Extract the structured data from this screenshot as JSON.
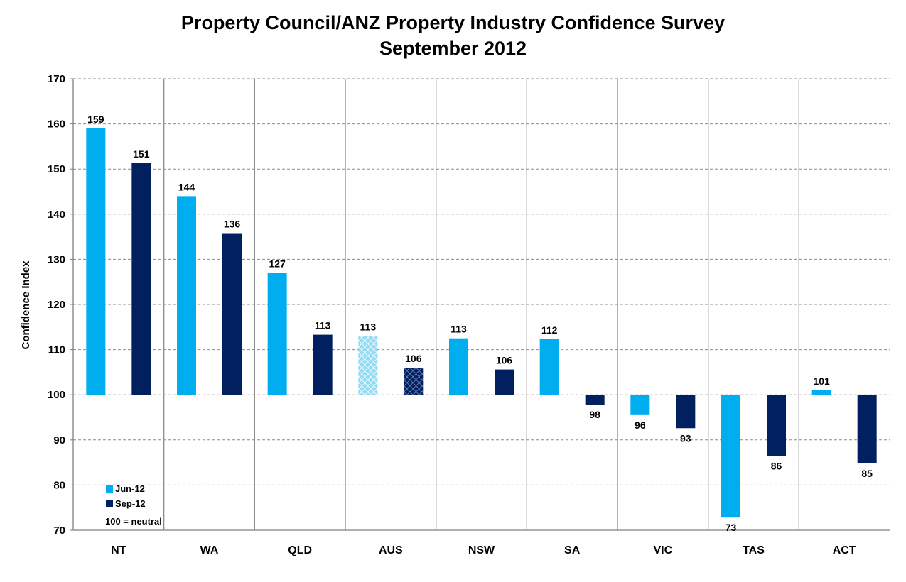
{
  "chart_data": {
    "type": "bar",
    "title": "Property Council/ANZ Property Industry Confidence Survey",
    "subtitle": "September 2012",
    "xlabel": "",
    "ylabel": "Confidence Index",
    "ylim": [
      70,
      170
    ],
    "yticks": [
      70,
      80,
      90,
      100,
      110,
      120,
      130,
      140,
      150,
      160,
      170
    ],
    "baseline": 100,
    "grid": true,
    "categories": [
      "NT",
      "WA",
      "QLD",
      "AUS",
      "NSW",
      "SA",
      "VIC",
      "TAS",
      "ACT"
    ],
    "series": [
      {
        "name": "Jun-12",
        "color": "#00AEEF",
        "values": [
          159,
          144,
          127,
          113,
          112.5,
          112.3,
          95.5,
          72.8,
          101
        ],
        "labels": [
          "159",
          "144",
          "127",
          "113",
          "113",
          "112",
          "96",
          "73",
          "101"
        ]
      },
      {
        "name": "Sep-12",
        "color": "#002060",
        "values": [
          151.3,
          135.8,
          113.3,
          106,
          105.6,
          97.8,
          92.6,
          86.4,
          84.8
        ],
        "labels": [
          "151",
          "136",
          "113",
          "106",
          "106",
          "98",
          "93",
          "86",
          "85"
        ]
      }
    ],
    "patterned_category": "AUS",
    "legend_position": "bottom-left",
    "legend_note": "100 = neutral"
  }
}
